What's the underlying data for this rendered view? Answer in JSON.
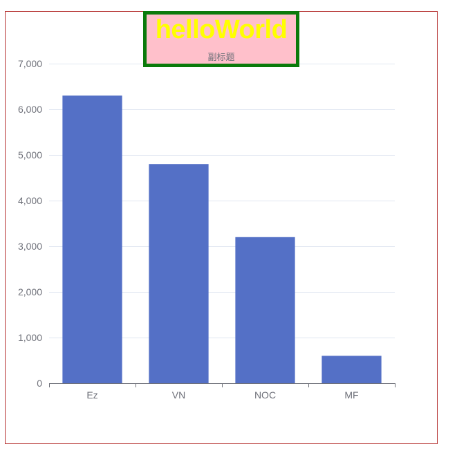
{
  "chart_data": {
    "type": "bar",
    "title": "helloWorld",
    "subtitle": "副标题",
    "categories": [
      "Ez",
      "VN",
      "NOC",
      "MF"
    ],
    "values": [
      6300,
      4800,
      3200,
      600
    ],
    "ylim": [
      0,
      7000
    ],
    "yticks": [
      0,
      1000,
      2000,
      3000,
      4000,
      5000,
      6000,
      7000
    ],
    "ytick_labels": [
      "0",
      "1,000",
      "2,000",
      "3,000",
      "4,000",
      "5,000",
      "6,000",
      "7,000"
    ],
    "grid": true,
    "colors": {
      "bar": "#5470c6",
      "title": "#ffff00",
      "title_background": "#ffc0cb",
      "title_border": "#0b7a0b",
      "frame_border": "#b5302f",
      "gridline": "#e0e6f1",
      "axis": "#6e7079"
    }
  }
}
